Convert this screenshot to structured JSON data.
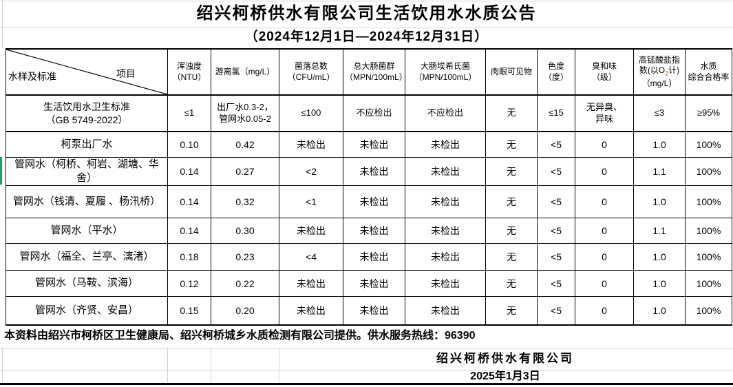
{
  "title": "绍兴柯桥供水有限公司生活饮用水水质公告",
  "subtitle": "（2024年12月1日—2024年12月31日）",
  "table": {
    "corner": {
      "bottom_left": "水样及标准",
      "top_right": "项目"
    },
    "columns": [
      "浑浊度\n（NTU）",
      "游离氯（mg/L）",
      "菌落总数\n（CFU/mL）",
      "总大肠菌群\n（MPN/100mL）",
      "大肠埃希氏菌\n（MPN/100mL）",
      "肉眼可见物",
      "色度\n（度）",
      "臭和味\n（级）",
      {
        "pre": "高锰酸盐指数(以O",
        "sub": "2",
        "post": "计)（mg/L）"
      },
      "水质\n综合合格率"
    ],
    "standard_row": {
      "label": "生活饮用水卫生标准\n（GB 5749-2022）",
      "values": [
        "≤1",
        "出厂水0.3-2，\n管网水0.05-2",
        "≤100",
        "不应检出",
        "不应检出",
        "无",
        "≤15",
        "无异臭、\n异味",
        "≤3",
        "≥95%"
      ]
    },
    "rows": [
      {
        "label": "柯泵出厂水",
        "values": [
          "0.10",
          "0.42",
          "未检出",
          "未检出",
          "未检出",
          "无",
          "<5",
          "0",
          "1.0",
          "100%"
        ]
      },
      {
        "label": "管网水（柯桥、柯岩、湖塘、华\n舍）",
        "values": [
          "0.14",
          "0.27",
          "<2",
          "未检出",
          "未检出",
          "无",
          "<5",
          "0",
          "1.1",
          "100%"
        ]
      },
      {
        "label": "管网水（钱清、夏履 、杨汛桥）",
        "values": [
          "0.14",
          "0.32",
          "<1",
          "未检出",
          "未检出",
          "无",
          "<5",
          "0",
          "1.0",
          "100%"
        ]
      },
      {
        "label": "管网水（平水）",
        "values": [
          "0.14",
          "0.30",
          "未检出",
          "未检出",
          "未检出",
          "无",
          "<5",
          "0",
          "1.1",
          "100%"
        ]
      },
      {
        "label": "管网水（福全、兰亭、漓渚）",
        "values": [
          "0.18",
          "0.23",
          "<4",
          "未检出",
          "未检出",
          "无",
          "<5",
          "0",
          "1.0",
          "100%"
        ]
      },
      {
        "label": "管网水（马鞍、滨海）",
        "values": [
          "0.12",
          "0.22",
          "未检出",
          "未检出",
          "未检出",
          "无",
          "<5",
          "0",
          "1.0",
          "100%"
        ]
      },
      {
        "label": "管网水（齐贤、安昌）",
        "values": [
          "0.15",
          "0.20",
          "未检出",
          "未检出",
          "未检出",
          "无",
          "<5",
          "0",
          "1.0",
          "100%"
        ]
      }
    ]
  },
  "footer": {
    "note": "本资料由绍兴市柯桥区卫生健康局、绍兴柯桥城乡水质检测有限公司提供。供水服务热线：96390",
    "company": "绍兴柯桥供水有限公司",
    "date": "2025年1月3日"
  },
  "colors": {
    "gridline": "#ccd3e0",
    "selection_marker_green": "#21a366",
    "subscript_orange": "#c55a11"
  }
}
